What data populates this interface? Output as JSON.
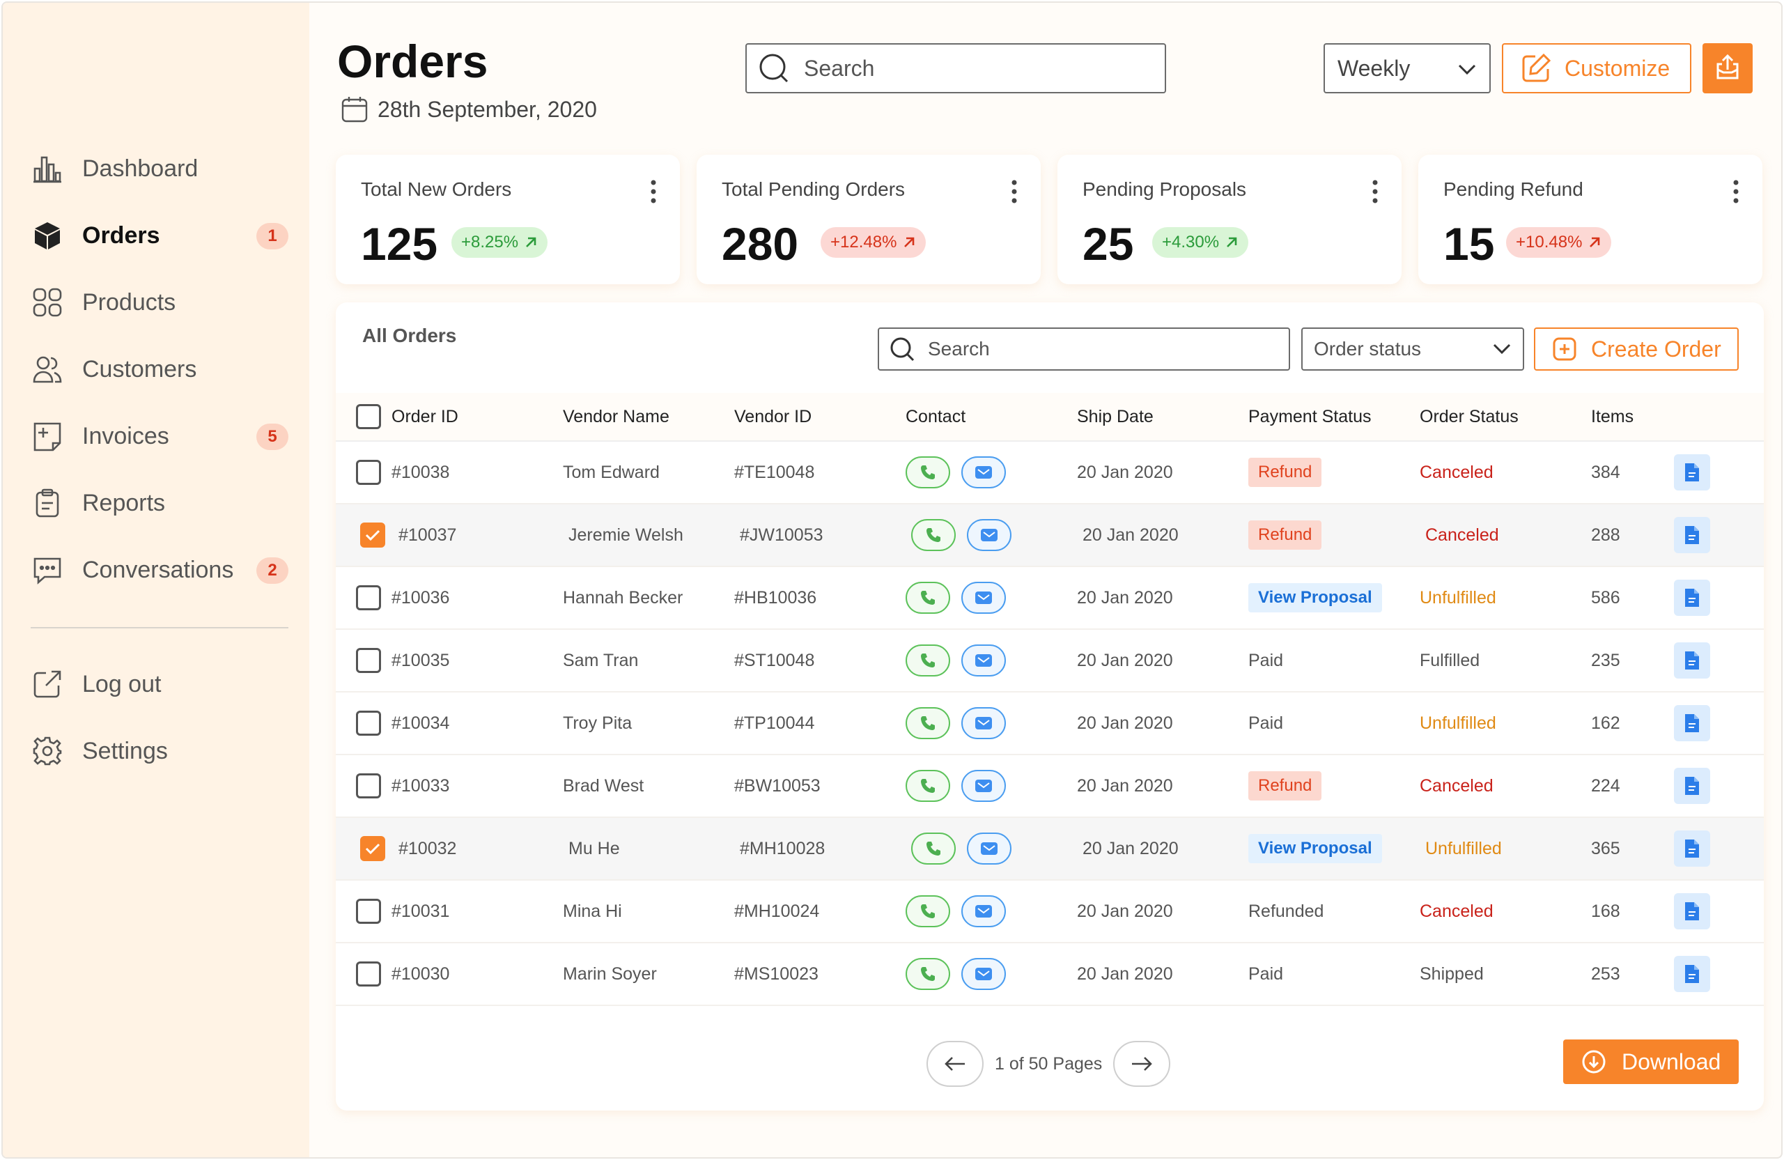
{
  "sidebar": {
    "items": [
      {
        "label": "Dashboard",
        "icon": "bar-chart-icon",
        "badge": ""
      },
      {
        "label": "Orders",
        "icon": "box-icon",
        "badge": "1",
        "active": true
      },
      {
        "label": "Products",
        "icon": "grid-icon",
        "badge": ""
      },
      {
        "label": "Customers",
        "icon": "users-icon",
        "badge": ""
      },
      {
        "label": "Invoices",
        "icon": "invoice-icon",
        "badge": "5"
      },
      {
        "label": "Reports",
        "icon": "clipboard-icon",
        "badge": ""
      },
      {
        "label": "Conversations",
        "icon": "chat-icon",
        "badge": "2"
      }
    ],
    "bottom": [
      {
        "label": "Log out",
        "icon": "logout-icon"
      },
      {
        "label": "Settings",
        "icon": "gear-icon"
      }
    ]
  },
  "header": {
    "title": "Orders",
    "date": "28th September, 2020",
    "search_placeholder": "Search",
    "period": "Weekly",
    "customize_label": "Customize"
  },
  "stats": [
    {
      "label": "Total New Orders",
      "value": "125",
      "delta": "+8.25%",
      "trend": "up"
    },
    {
      "label": "Total Pending Orders",
      "value": "280",
      "delta": "+12.48%",
      "trend": "down"
    },
    {
      "label": "Pending Proposals",
      "value": "25",
      "delta": "+4.30%",
      "trend": "up"
    },
    {
      "label": "Pending Refund",
      "value": "15",
      "delta": "+10.48%",
      "trend": "down"
    }
  ],
  "orders": {
    "title": "All Orders",
    "search_placeholder": "Search",
    "status_filter": "Order status",
    "create_label": "Create Order",
    "columns": [
      "Order ID",
      "Vendor Name",
      "Vendor ID",
      "Contact",
      "Ship Date",
      "Payment Status",
      "Order Status",
      "Items"
    ],
    "rows": [
      {
        "id": "#10038",
        "vendor": "Tom Edward",
        "vendor_id": "#TE10048",
        "date": "20 Jan 2020",
        "payment": "Refund",
        "payment_style": "refund",
        "status": "Canceled",
        "status_style": "canceled",
        "items": "384",
        "checked": false
      },
      {
        "id": "#10037",
        "vendor": "Jeremie Welsh",
        "vendor_id": "#JW10053",
        "date": "20 Jan 2020",
        "payment": "Refund",
        "payment_style": "refund",
        "status": "Canceled",
        "status_style": "canceled",
        "items": "288",
        "checked": true
      },
      {
        "id": "#10036",
        "vendor": "Hannah Becker",
        "vendor_id": "#HB10036",
        "date": "20 Jan 2020",
        "payment": "View Proposal",
        "payment_style": "proposal",
        "status": "Unfulfilled",
        "status_style": "unfulfilled",
        "items": "586",
        "checked": false
      },
      {
        "id": "#10035",
        "vendor": "Sam Tran",
        "vendor_id": "#ST10048",
        "date": "20 Jan 2020",
        "payment": "Paid",
        "payment_style": "plain",
        "status": "Fulfilled",
        "status_style": "plain",
        "items": "235",
        "checked": false
      },
      {
        "id": "#10034",
        "vendor": "Troy Pita",
        "vendor_id": "#TP10044",
        "date": "20 Jan 2020",
        "payment": "Paid",
        "payment_style": "plain",
        "status": "Unfulfilled",
        "status_style": "unfulfilled",
        "items": "162",
        "checked": false
      },
      {
        "id": "#10033",
        "vendor": "Brad West",
        "vendor_id": "#BW10053",
        "date": "20 Jan 2020",
        "payment": "Refund",
        "payment_style": "refund",
        "status": "Canceled",
        "status_style": "canceled",
        "items": "224",
        "checked": false
      },
      {
        "id": "#10032",
        "vendor": "Mu He",
        "vendor_id": "#MH10028",
        "date": "20 Jan 2020",
        "payment": "View Proposal",
        "payment_style": "proposal",
        "status": "Unfulfilled",
        "status_style": "unfulfilled",
        "items": "365",
        "checked": true
      },
      {
        "id": "#10031",
        "vendor": "Mina Hi",
        "vendor_id": "#MH10024",
        "date": "20 Jan 2020",
        "payment": "Refunded",
        "payment_style": "plain",
        "status": "Canceled",
        "status_style": "canceled",
        "items": "168",
        "checked": false
      },
      {
        "id": "#10030",
        "vendor": "Marin Soyer",
        "vendor_id": "#MS10023",
        "date": "20 Jan 2020",
        "payment": "Paid",
        "payment_style": "plain",
        "status": "Shipped",
        "status_style": "plain",
        "items": "253",
        "checked": false
      }
    ],
    "pagination": "1 of 50 Pages",
    "download_label": "Download"
  },
  "colors": {
    "accent": "#f7842a",
    "sidebar_bg": "#fff3e5",
    "success": "#2b9b3a",
    "danger": "#c9221a",
    "warning": "#e08a14",
    "link": "#1a6fd6"
  }
}
